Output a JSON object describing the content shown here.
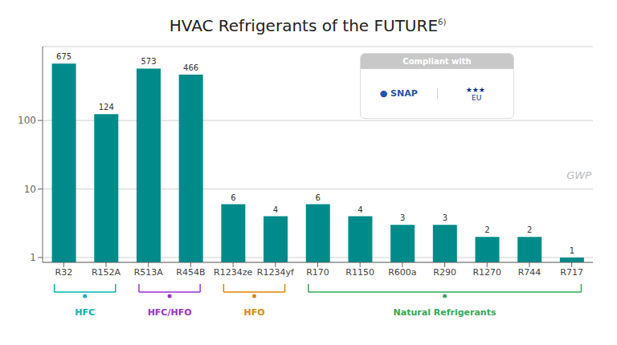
{
  "chart_data": {
    "type": "bar",
    "title": "HVAC Refrigerants of the FUTURE",
    "categories": [
      "R32",
      "R152A",
      "R513A",
      "R454B",
      "R1234ze",
      "R1234yf",
      "R170",
      "R1150",
      "R600a",
      "R290",
      "R1270",
      "R744",
      "R717"
    ],
    "values": [
      675,
      124,
      573,
      466,
      6,
      4,
      6,
      4,
      3,
      3,
      2,
      2,
      1
    ],
    "color": "#008B8B",
    "log": "y",
    "ylim": [
      0.85,
      1200
    ],
    "yticks": [
      1,
      10,
      100
    ],
    "grid": true,
    "data_labels": true,
    "annotations": [
      {
        "text": "6)"
      },
      {
        "text": "GWP"
      },
      {
        "text": "Compliant with"
      },
      {
        "text": "● SNAP"
      },
      {
        "text": "★★★\n EU"
      }
    ],
    "groups": [
      {
        "label": "HFC",
        "color": "#00b3b3",
        "categories": [
          "R32",
          "R152A"
        ]
      },
      {
        "label": "HFC/HFO",
        "color": "#9933cc",
        "categories": [
          "R513A",
          "R454B"
        ]
      },
      {
        "label": "HFO",
        "color": "#dd8800",
        "categories": [
          "R1234ze",
          "R1234yf"
        ]
      },
      {
        "label": "Natural Refrigerants",
        "color": "#33aa55",
        "categories": [
          "R170",
          "R1150",
          "R600a",
          "R290",
          "R1270",
          "R744",
          "R717"
        ]
      }
    ]
  }
}
